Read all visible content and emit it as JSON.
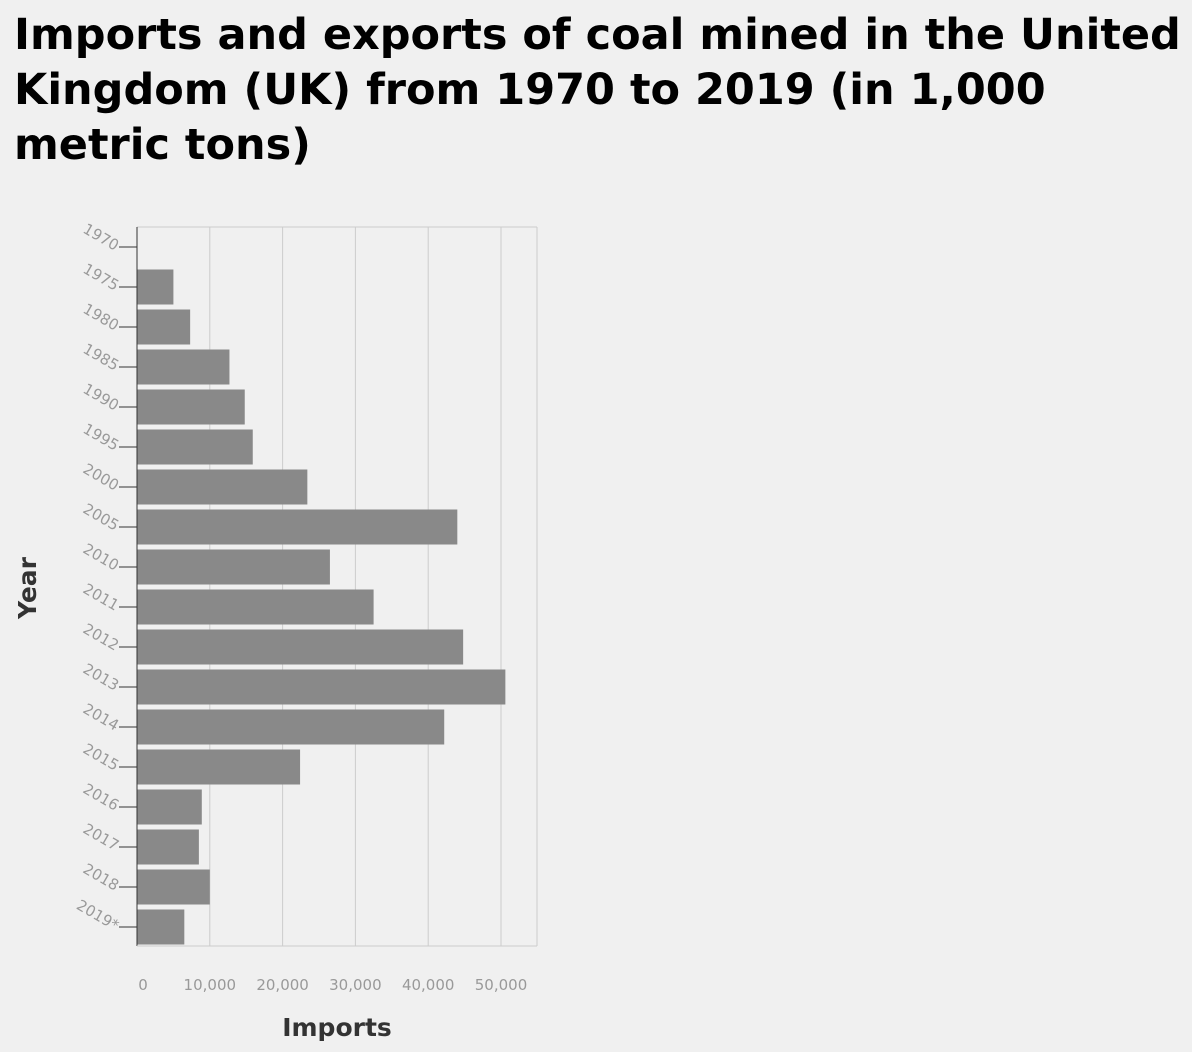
{
  "chart_data": {
    "type": "bar",
    "orientation": "horizontal",
    "title": "Imports and exports of coal mined in the United Kingdom (UK) from 1970 to 2019 (in 1,000 metric tons)",
    "xlabel": "Imports",
    "ylabel": "Year",
    "categories": [
      "1970",
      "1975",
      "1980",
      "1985",
      "1990",
      "1995",
      "2000",
      "2005",
      "2010",
      "2011",
      "2012",
      "2013",
      "2014",
      "2015",
      "2016",
      "2017",
      "2018",
      "2019*"
    ],
    "series": [
      {
        "values": [
          0,
          5000,
          7300,
          12700,
          14800,
          15900,
          23400,
          44000,
          26500,
          32500,
          44800,
          50600,
          42200,
          22400,
          8900,
          8500,
          10000,
          6500
        ]
      }
    ],
    "xticks": [
      "0",
      "10,000",
      "20,000",
      "30,000",
      "40,000",
      "50,000"
    ],
    "xlim": [
      0,
      55000
    ],
    "grid": true,
    "bar_color": "#898989",
    "grid_color": "#cccccc",
    "legend": false
  }
}
